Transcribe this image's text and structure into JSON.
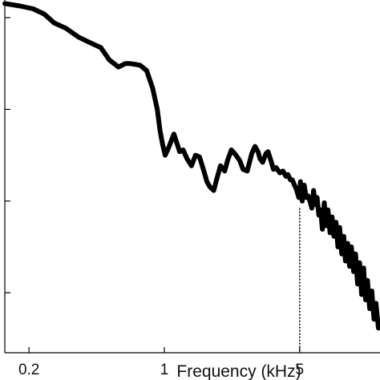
{
  "chart_data": {
    "type": "line",
    "title": "",
    "xlabel": "Frequency (kHz)",
    "ylabel": "",
    "x_scale": "log",
    "xlim": [
      0.15,
      13
    ],
    "ylim": [
      0,
      1
    ],
    "grid": false,
    "legend": "none",
    "line_color": "#000000",
    "x_ticks": [
      {
        "value": 0.2,
        "label": "0.2"
      },
      {
        "value": 1,
        "label": "1"
      },
      {
        "value": 5,
        "label": "5"
      }
    ],
    "y_tick_values": [
      0.17,
      0.43,
      0.69,
      0.95
    ],
    "series": [
      {
        "x": [
          0.15,
          0.18,
          0.21,
          0.24,
          0.27,
          0.31,
          0.36,
          0.41,
          0.47,
          0.52,
          0.58,
          0.63,
          0.66,
          0.7,
          0.75,
          0.81,
          0.87,
          0.92,
          0.95,
          0.98,
          1.01,
          1.05,
          1.12,
          1.2,
          1.25,
          1.31,
          1.38,
          1.45,
          1.52,
          1.6,
          1.66,
          1.72,
          1.8,
          1.86,
          1.95,
          2.05,
          2.12,
          2.22,
          2.33,
          2.45,
          2.55,
          2.68,
          2.83,
          2.94,
          3.05,
          3.12,
          3.22,
          3.35,
          3.43,
          3.55,
          3.66,
          3.78,
          3.95,
          4.1,
          4.25,
          4.35,
          4.48,
          4.58,
          4.7,
          4.8,
          4.95,
          5.05,
          5.15,
          5.28,
          5.4,
          5.52,
          5.65,
          5.78,
          5.9,
          6.02,
          6.15,
          6.28,
          6.42,
          6.55,
          6.7,
          6.85,
          7.0,
          7.18,
          7.35,
          7.52,
          7.7,
          7.88,
          8.05,
          8.25,
          8.45,
          8.62,
          8.85,
          9.05,
          9.25,
          9.5,
          9.72,
          9.95,
          10.2,
          10.45,
          10.7,
          10.95,
          11.2,
          11.5,
          11.8,
          12.1,
          12.4,
          12.75,
          13.0
        ],
        "y": [
          0.99,
          0.983,
          0.975,
          0.96,
          0.935,
          0.92,
          0.895,
          0.88,
          0.865,
          0.83,
          0.81,
          0.82,
          0.82,
          0.818,
          0.815,
          0.8,
          0.75,
          0.69,
          0.63,
          0.59,
          0.56,
          0.58,
          0.62,
          0.57,
          0.575,
          0.55,
          0.53,
          0.56,
          0.555,
          0.515,
          0.485,
          0.47,
          0.46,
          0.49,
          0.53,
          0.515,
          0.545,
          0.575,
          0.562,
          0.545,
          0.52,
          0.515,
          0.565,
          0.585,
          0.57,
          0.55,
          0.54,
          0.565,
          0.57,
          0.545,
          0.52,
          0.525,
          0.51,
          0.515,
          0.5,
          0.505,
          0.49,
          0.49,
          0.475,
          0.465,
          0.44,
          0.485,
          0.43,
          0.475,
          0.44,
          0.445,
          0.43,
          0.41,
          0.46,
          0.42,
          0.44,
          0.39,
          0.405,
          0.35,
          0.425,
          0.36,
          0.405,
          0.34,
          0.385,
          0.33,
          0.37,
          0.3,
          0.355,
          0.28,
          0.33,
          0.26,
          0.31,
          0.245,
          0.3,
          0.23,
          0.28,
          0.195,
          0.255,
          0.165,
          0.24,
          0.15,
          0.205,
          0.125,
          0.175,
          0.095,
          0.14,
          0.07,
          0.09
        ]
      }
    ],
    "marker": {
      "x": 5,
      "y": 0.41,
      "style": "dotted vertical line"
    }
  }
}
